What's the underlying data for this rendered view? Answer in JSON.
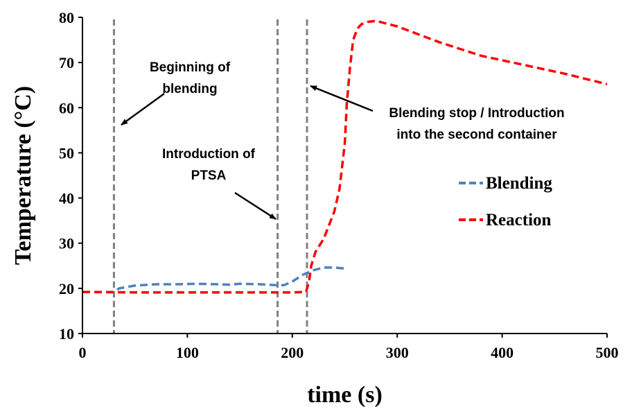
{
  "chart_data": {
    "type": "line",
    "title": "",
    "xlabel": "time (s)",
    "ylabel": "Temperature (°C)",
    "xlim": [
      0,
      500
    ],
    "ylim": [
      10,
      80
    ],
    "xticks": [
      0,
      100,
      200,
      300,
      400,
      500
    ],
    "yticks": [
      10,
      20,
      30,
      40,
      50,
      60,
      70,
      80
    ],
    "grid": false,
    "legend_position": "right",
    "series": [
      {
        "name": "Blending",
        "color": "#4f81bd",
        "x": [
          0,
          30,
          35,
          50,
          70,
          90,
          110,
          130,
          140,
          150,
          170,
          185,
          192,
          200,
          210,
          220,
          230,
          240,
          250
        ],
        "y": [
          19.2,
          19.2,
          20.0,
          20.6,
          20.9,
          20.9,
          21.0,
          20.9,
          20.8,
          21.0,
          20.9,
          20.7,
          20.7,
          21.5,
          23.0,
          24.0,
          24.6,
          24.6,
          24.4
        ]
      },
      {
        "name": "Reaction",
        "color": "#ff0000",
        "x": [
          0,
          50,
          100,
          150,
          200,
          213,
          216,
          218,
          222,
          230,
          240,
          245,
          250,
          252,
          255,
          258,
          262,
          266,
          272,
          280,
          300,
          340,
          380,
          420,
          460,
          500
        ],
        "y": [
          19.2,
          19.1,
          19.1,
          19.1,
          19.1,
          19.2,
          21.5,
          25.0,
          28.0,
          31.0,
          37.0,
          42.0,
          52.0,
          61.0,
          69.0,
          75.0,
          77.5,
          78.5,
          79.0,
          79.2,
          78.0,
          74.5,
          71.5,
          69.5,
          67.5,
          65.2
        ]
      }
    ],
    "vlines": [
      30,
      186,
      214
    ],
    "annotations": [
      {
        "lines": [
          "Beginning of",
          "blending"
        ]
      },
      {
        "lines": [
          "Introduction of",
          "PTSA"
        ]
      },
      {
        "lines": [
          "Blending stop / Introduction",
          "into the second container"
        ]
      }
    ]
  }
}
